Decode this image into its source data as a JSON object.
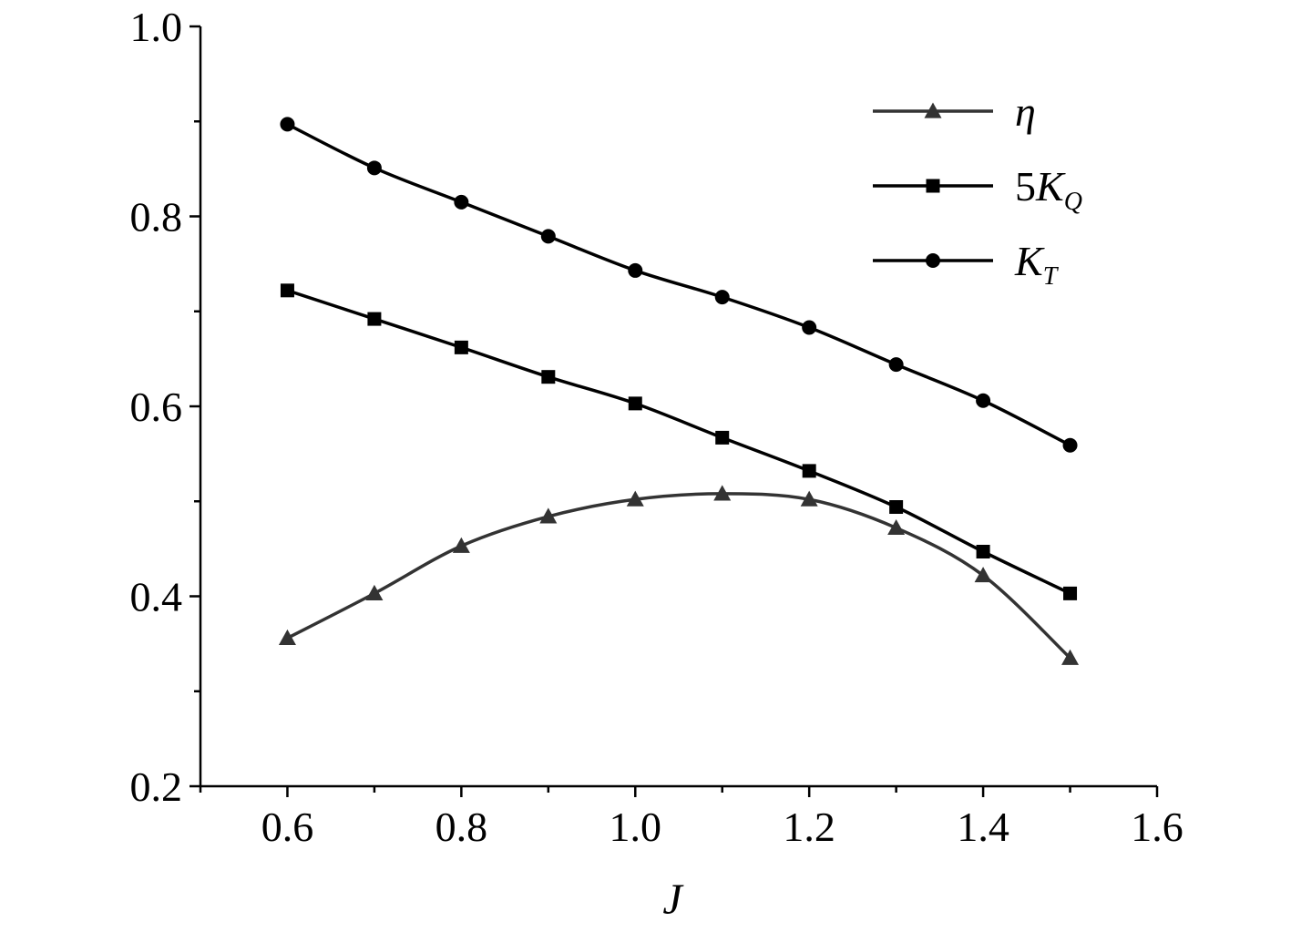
{
  "chart_data": {
    "type": "line",
    "xlabel": "J",
    "xlim": [
      0.5,
      1.6
    ],
    "ylim": [
      0.2,
      1.0
    ],
    "x_ticks": [
      "0.6",
      "0.8",
      "1.0",
      "1.2",
      "1.4",
      "1.6"
    ],
    "y_ticks": [
      "0.2",
      "0.4",
      "0.6",
      "0.8",
      "1.0"
    ],
    "grid": false,
    "legend_position": "top-right",
    "x": [
      0.6,
      0.7,
      0.8,
      0.9,
      1.0,
      1.1,
      1.2,
      1.3,
      1.4,
      1.5
    ],
    "series": [
      {
        "name": "η",
        "legend_main": "η",
        "legend_sub": "",
        "marker": "triangle",
        "color": "#333333",
        "values": [
          0.356,
          0.403,
          0.453,
          0.484,
          0.502,
          0.508,
          0.502,
          0.472,
          0.422,
          0.335
        ]
      },
      {
        "name": "5K_Q",
        "legend_main": "5K",
        "legend_sub": "Q",
        "marker": "square",
        "color": "#000000",
        "values": [
          0.722,
          0.692,
          0.662,
          0.631,
          0.603,
          0.567,
          0.532,
          0.494,
          0.447,
          0.403
        ]
      },
      {
        "name": "K_T",
        "legend_main": "K",
        "legend_sub": "T",
        "marker": "circle",
        "color": "#000000",
        "values": [
          0.897,
          0.851,
          0.815,
          0.779,
          0.743,
          0.715,
          0.683,
          0.644,
          0.606,
          0.559
        ]
      }
    ]
  }
}
